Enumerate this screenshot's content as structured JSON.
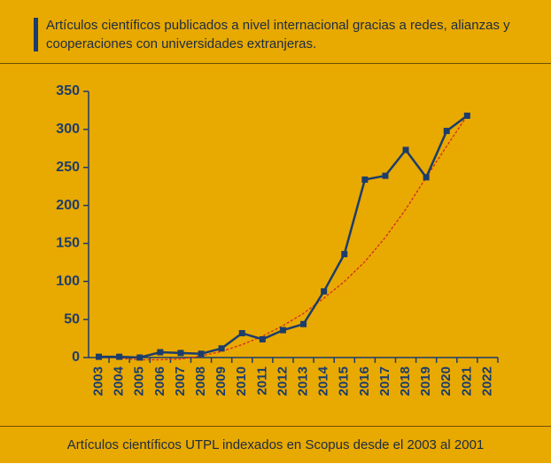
{
  "header": {
    "title": "Artículos científicos publicados a nivel internacional gracias a redes, alianzas y cooperaciones con universidades extranjeras."
  },
  "chart_data": {
    "type": "line",
    "categories": [
      "2003",
      "2004",
      "2005",
      "2006",
      "2007",
      "2008",
      "2009",
      "2010",
      "2011",
      "2012",
      "2013",
      "2014",
      "2015",
      "2016",
      "2017",
      "2018",
      "2019",
      "2020",
      "2021",
      "2022"
    ],
    "series": [
      {
        "name": "Artículos científicos UTPL indexados en Scopus desde el 2003 al 2001",
        "color": "#1c3d6b",
        "values": [
          1,
          1,
          0,
          7,
          6,
          5,
          12,
          32,
          24,
          36,
          44,
          87,
          136,
          234,
          239,
          273,
          237,
          298,
          318,
          null
        ]
      }
    ],
    "trendline": {
      "color": "#d4202a",
      "values": [
        2,
        -1,
        -3,
        -3,
        -2,
        2,
        8,
        17,
        28,
        42,
        58,
        78,
        100,
        126,
        158,
        195,
        237,
        278,
        318,
        null
      ]
    },
    "ylim": [
      0,
      350
    ],
    "yticks": [
      0,
      50,
      100,
      150,
      200,
      250,
      300,
      350
    ]
  },
  "footer": {
    "text": "Artículos científicos UTPL indexados en Scopus desde el 2003 al 2001"
  }
}
